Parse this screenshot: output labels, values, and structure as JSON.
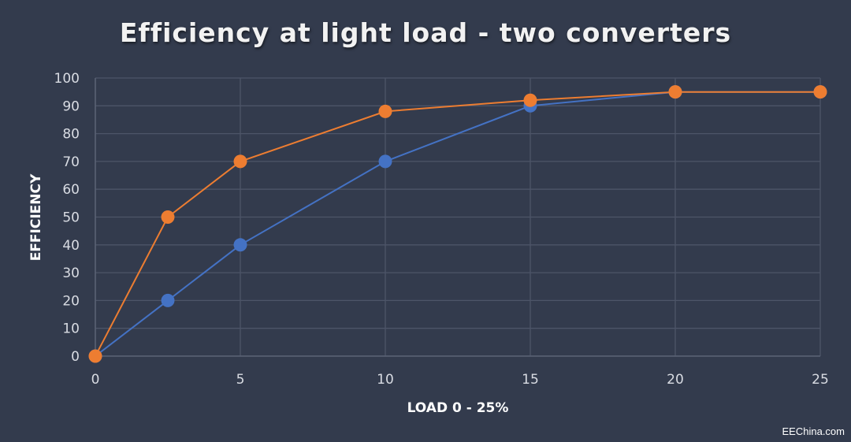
{
  "chart_data": {
    "type": "line",
    "title": "Efficiency at light load - two converters",
    "xlabel": "LOAD 0 - 25%",
    "ylabel": "EFFICIENCY",
    "xlim": [
      0,
      25
    ],
    "ylim": [
      0,
      100
    ],
    "x_ticks": [
      "0",
      "5",
      "10",
      "15",
      "20",
      "25"
    ],
    "y_ticks": [
      "0",
      "10",
      "20",
      "30",
      "40",
      "50",
      "60",
      "70",
      "80",
      "90",
      "100"
    ],
    "grid": true,
    "series": [
      {
        "color": "#4472c4",
        "x": [
          0,
          2.5,
          5,
          10,
          15,
          20,
          25
        ],
        "y": [
          0,
          20,
          40,
          70,
          90,
          95,
          95
        ]
      },
      {
        "color": "#ed7d31",
        "x": [
          0,
          2.5,
          5,
          10,
          15,
          20,
          25
        ],
        "y": [
          0,
          50,
          70,
          88,
          92,
          95,
          95
        ]
      }
    ]
  },
  "watermark": "EEChina.com"
}
